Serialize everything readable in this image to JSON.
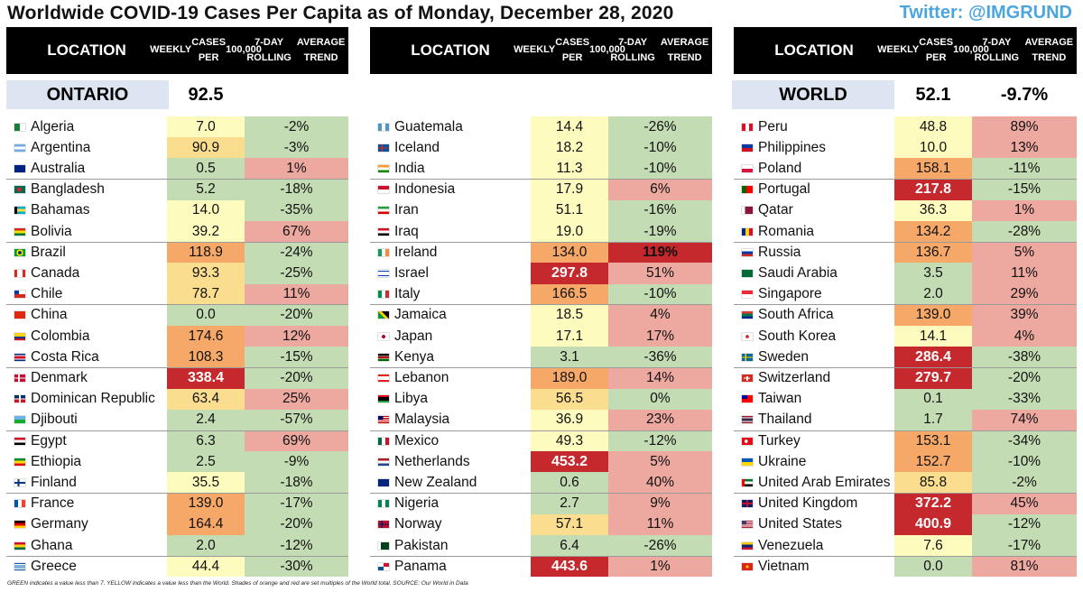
{
  "title": "Worldwide COVID-19 Cases Per Capita as of Monday, December 28, 2020",
  "twitter": "Twitter: @IMGRUND",
  "headers": {
    "location": "LOCATION",
    "weekly_l1": "WEEKLY",
    "weekly_l2": "CASES PER",
    "weekly_l3": "100,000",
    "trend_l1": "7-DAY ROLLING",
    "trend_l2": "AVERAGE TREND"
  },
  "highlights": {
    "ontario_label": "ONTARIO",
    "ontario_value": "92.5",
    "world_label": "WORLD",
    "world_value": "52.1",
    "world_trend": "-9.7%"
  },
  "footnote": "GREEN indicates a value less than 7. YELLOW indicates a value less than the World. Shades of orange and red are set multiples of the World total. SOURCE: Our World in Data",
  "colors": {
    "green": "#c4dcb3",
    "yellow": "#fefbbe",
    "light_orange": "#fbdd8f",
    "orange": "#f6a868",
    "red": "#c5282d",
    "trend_green": "#c4dcb3",
    "trend_red": "#eda8a0",
    "trend_dark_red": "#c5282d"
  },
  "columns": [
    [
      {
        "name": "Algeria",
        "value": "7.0",
        "trend": "-2%"
      },
      {
        "name": "Argentina",
        "value": "90.9",
        "trend": "-3%"
      },
      {
        "name": "Australia",
        "value": "0.5",
        "trend": "1%"
      },
      {
        "name": "Bangladesh",
        "value": "5.2",
        "trend": "-18%"
      },
      {
        "name": "Bahamas",
        "value": "14.0",
        "trend": "-35%"
      },
      {
        "name": "Bolivia",
        "value": "39.2",
        "trend": "67%"
      },
      {
        "name": "Brazil",
        "value": "118.9",
        "trend": "-24%"
      },
      {
        "name": "Canada",
        "value": "93.3",
        "trend": "-25%"
      },
      {
        "name": "Chile",
        "value": "78.7",
        "trend": "11%"
      },
      {
        "name": "China",
        "value": "0.0",
        "trend": "-20%"
      },
      {
        "name": "Colombia",
        "value": "174.6",
        "trend": "12%"
      },
      {
        "name": "Costa Rica",
        "value": "108.3",
        "trend": "-15%"
      },
      {
        "name": "Denmark",
        "value": "338.4",
        "trend": "-20%"
      },
      {
        "name": "Dominican Republic",
        "value": "63.4",
        "trend": "25%"
      },
      {
        "name": "Djibouti",
        "value": "2.4",
        "trend": "-57%"
      },
      {
        "name": "Egypt",
        "value": "6.3",
        "trend": "69%"
      },
      {
        "name": "Ethiopia",
        "value": "2.5",
        "trend": "-9%"
      },
      {
        "name": "Finland",
        "value": "35.5",
        "trend": "-18%"
      },
      {
        "name": "France",
        "value": "139.0",
        "trend": "-17%"
      },
      {
        "name": "Germany",
        "value": "164.4",
        "trend": "-20%"
      },
      {
        "name": "Ghana",
        "value": "2.0",
        "trend": "-12%"
      },
      {
        "name": "Greece",
        "value": "44.4",
        "trend": "-30%"
      }
    ],
    [
      {
        "name": "Guatemala",
        "value": "14.4",
        "trend": "-26%"
      },
      {
        "name": "Iceland",
        "value": "18.2",
        "trend": "-10%"
      },
      {
        "name": "India",
        "value": "11.3",
        "trend": "-10%"
      },
      {
        "name": "Indonesia",
        "value": "17.9",
        "trend": "6%"
      },
      {
        "name": "Iran",
        "value": "51.1",
        "trend": "-16%"
      },
      {
        "name": "Iraq",
        "value": "19.0",
        "trend": "-19%"
      },
      {
        "name": "Ireland",
        "value": "134.0",
        "trend": "119%"
      },
      {
        "name": "Israel",
        "value": "297.8",
        "trend": "51%"
      },
      {
        "name": "Italy",
        "value": "166.5",
        "trend": "-10%"
      },
      {
        "name": "Jamaica",
        "value": "18.5",
        "trend": "4%"
      },
      {
        "name": "Japan",
        "value": "17.1",
        "trend": "17%"
      },
      {
        "name": "Kenya",
        "value": "3.1",
        "trend": "-36%"
      },
      {
        "name": "Lebanon",
        "value": "189.0",
        "trend": "14%"
      },
      {
        "name": "Libya",
        "value": "56.5",
        "trend": "0%"
      },
      {
        "name": "Malaysia",
        "value": "36.9",
        "trend": "23%"
      },
      {
        "name": "Mexico",
        "value": "49.3",
        "trend": "-12%"
      },
      {
        "name": "Netherlands",
        "value": "453.2",
        "trend": "5%"
      },
      {
        "name": "New Zealand",
        "value": "0.6",
        "trend": "40%"
      },
      {
        "name": "Nigeria",
        "value": "2.7",
        "trend": "9%"
      },
      {
        "name": "Norway",
        "value": "57.1",
        "trend": "11%"
      },
      {
        "name": "Pakistan",
        "value": "6.4",
        "trend": "-26%"
      },
      {
        "name": "Panama",
        "value": "443.6",
        "trend": "1%"
      }
    ],
    [
      {
        "name": "Peru",
        "value": "48.8",
        "trend": "89%"
      },
      {
        "name": "Philippines",
        "value": "10.0",
        "trend": "13%"
      },
      {
        "name": "Poland",
        "value": "158.1",
        "trend": "-11%"
      },
      {
        "name": "Portugal",
        "value": "217.8",
        "trend": "-15%"
      },
      {
        "name": "Qatar",
        "value": "36.3",
        "trend": "1%"
      },
      {
        "name": "Romania",
        "value": "134.2",
        "trend": "-28%"
      },
      {
        "name": "Russia",
        "value": "136.7",
        "trend": "5%"
      },
      {
        "name": "Saudi Arabia",
        "value": "3.5",
        "trend": "11%"
      },
      {
        "name": "Singapore",
        "value": "2.0",
        "trend": "29%"
      },
      {
        "name": "South Africa",
        "value": "139.0",
        "trend": "39%"
      },
      {
        "name": "South Korea",
        "value": "14.1",
        "trend": "4%"
      },
      {
        "name": "Sweden",
        "value": "286.4",
        "trend": "-38%"
      },
      {
        "name": "Switzerland",
        "value": "279.7",
        "trend": "-20%"
      },
      {
        "name": "Taiwan",
        "value": "0.1",
        "trend": "-33%"
      },
      {
        "name": "Thailand",
        "value": "1.7",
        "trend": "74%"
      },
      {
        "name": "Turkey",
        "value": "153.1",
        "trend": "-34%"
      },
      {
        "name": "Ukraine",
        "value": "152.7",
        "trend": "-10%"
      },
      {
        "name": "United Arab Emirates",
        "value": "85.8",
        "trend": "-2%"
      },
      {
        "name": "United Kingdom",
        "value": "372.2",
        "trend": "45%"
      },
      {
        "name": "United States",
        "value": "400.9",
        "trend": "-12%"
      },
      {
        "name": "Venezuela",
        "value": "7.6",
        "trend": "-17%"
      },
      {
        "name": "Vietnam",
        "value": "0.0",
        "trend": "81%"
      }
    ]
  ]
}
